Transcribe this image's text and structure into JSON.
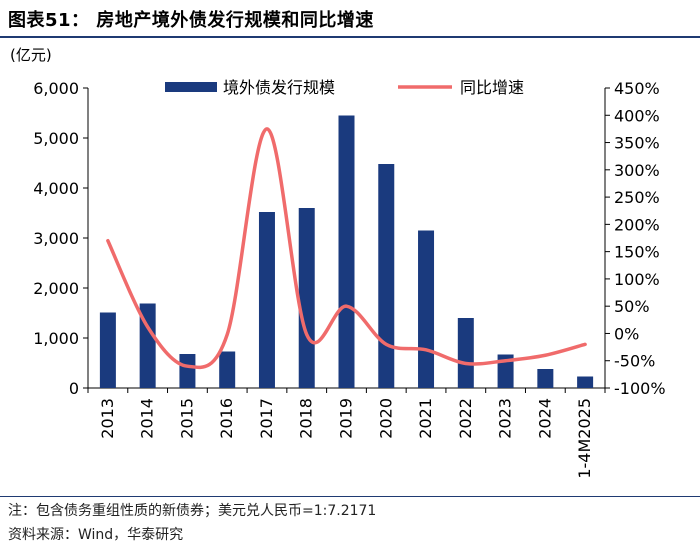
{
  "header": {
    "title": "图表51：  房地产境外债发行规模和同比增速"
  },
  "chart_data": {
    "type": "bar+line",
    "title": "房地产境外债发行规模和同比增速",
    "left_unit": "(亿元)",
    "categories": [
      "2013",
      "2014",
      "2015",
      "2016",
      "2017",
      "2018",
      "2019",
      "2020",
      "2021",
      "2022",
      "2023",
      "2024",
      "1-4M2025"
    ],
    "series": [
      {
        "name": "境外债发行规模",
        "type": "bar",
        "axis": "left",
        "color": "#1a3a7e",
        "values": [
          1510,
          1690,
          680,
          730,
          3520,
          3600,
          5450,
          4480,
          3150,
          1400,
          670,
          380,
          230
        ]
      },
      {
        "name": "同比增速",
        "type": "line",
        "axis": "right",
        "unit": "%",
        "color": "#f06b6b",
        "values": [
          170,
          12,
          -60,
          -2,
          375,
          -2,
          50,
          -20,
          -30,
          -55,
          -50,
          -40,
          -20
        ]
      }
    ],
    "left_axis": {
      "min": 0,
      "max": 6000,
      "ticks": [
        0,
        1000,
        2000,
        3000,
        4000,
        5000,
        6000
      ],
      "tick_labels": [
        "0",
        "1,000",
        "2,000",
        "3,000",
        "4,000",
        "5,000",
        "6,000"
      ]
    },
    "right_axis": {
      "min": -100,
      "max": 450,
      "ticks": [
        -100,
        -50,
        0,
        50,
        100,
        150,
        200,
        250,
        300,
        350,
        400,
        450
      ],
      "tick_labels": [
        "-100%",
        "-50%",
        "0%",
        "50%",
        "100%",
        "150%",
        "200%",
        "250%",
        "300%",
        "350%",
        "400%",
        "450%"
      ]
    },
    "legend": {
      "position": "top",
      "items": [
        "境外债发行规模",
        "同比增速"
      ]
    },
    "grid": false
  },
  "footer": {
    "note": "注：包含债务重组性质的新债券；美元兑人民币=1:7.2171",
    "source": "资料来源：Wind，华泰研究"
  }
}
